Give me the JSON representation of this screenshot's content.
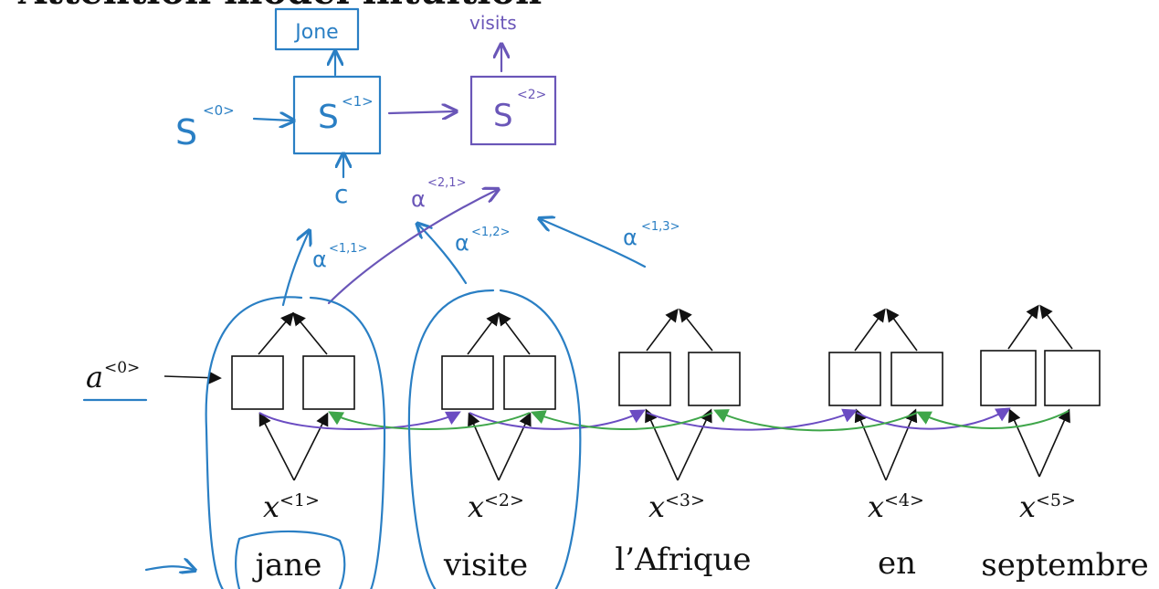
{
  "header": {
    "title": "Attention model intuition"
  },
  "decoder": {
    "output_word": "Jone",
    "second_output": "visits",
    "s0": "S",
    "s0_sup": "<0>",
    "s1": "S",
    "s1_sup": "<1>",
    "s2": "S",
    "s2_sup": "<2>",
    "context": "c"
  },
  "attention": {
    "alpha_1_1": "α",
    "alpha_1_1_sup": "<1,1>",
    "alpha_1_2": "α",
    "alpha_1_2_sup": "<1,2>",
    "alpha_1_3": "α",
    "alpha_1_3_sup": "<1,3>",
    "alpha_2_1": "α",
    "alpha_2_1_sup": "<2,1>"
  },
  "encoder": {
    "initial_activation": "a",
    "initial_activation_sup": "<0>",
    "inputs": [
      {
        "symbol": "x",
        "sup": "<1>",
        "word": "jane"
      },
      {
        "symbol": "x",
        "sup": "<2>",
        "word": "visite"
      },
      {
        "symbol": "x",
        "sup": "<3>",
        "word": "l’Afrique"
      },
      {
        "symbol": "x",
        "sup": "<4>",
        "word": "en"
      },
      {
        "symbol": "x",
        "sup": "<5>",
        "word": "septembre"
      }
    ]
  },
  "colors": {
    "blue_ink": "#2a7fc4",
    "purple_ink": "#6a56b8",
    "forward_arrow": "#6b4cc2",
    "backward_arrow": "#3fa64a"
  }
}
